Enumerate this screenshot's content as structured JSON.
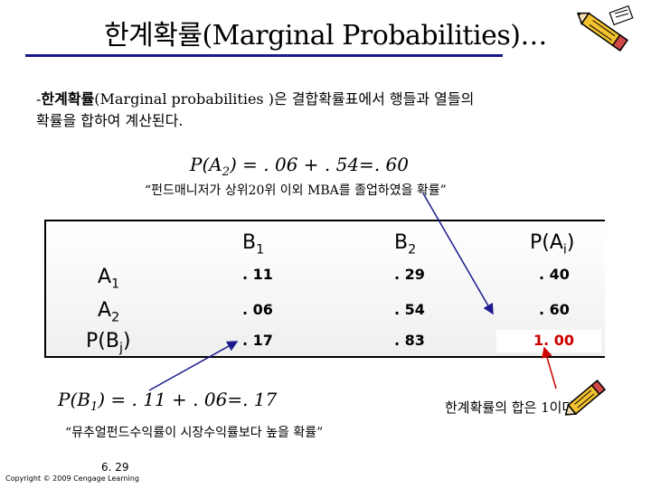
{
  "title": "한계확률(Marginal Probabilities)…",
  "intro": {
    "prefix": "-",
    "term": "한계확률",
    "text_1": "(Marginal probabilities )은 결합확률표에서 행들과 열들의",
    "text_2": "확률을 합하여 계산된다."
  },
  "formula_top": {
    "lhs": "P(A",
    "sub": "2",
    "rhs": ") = . 06 + . 54=. 60"
  },
  "quote_top": "“펀드매니저가 상위20위 이외 MBA를 졸업하였을 확률”",
  "table": {
    "headers": [
      {
        "main": "B",
        "sub": "1",
        "tail": ""
      },
      {
        "main": "B",
        "sub": "2",
        "tail": ""
      },
      {
        "main": "P(A",
        "sub": "i",
        "tail": ")"
      }
    ],
    "rows": [
      {
        "label": {
          "main": "A",
          "sub": "1",
          "tail": ""
        },
        "values": [
          ". 11",
          ". 29",
          ". 40"
        ]
      },
      {
        "label": {
          "main": "A",
          "sub": "2",
          "tail": ""
        },
        "values": [
          ". 06",
          ". 54",
          ". 60"
        ]
      },
      {
        "label": {
          "main": "P(B",
          "sub": "j",
          "tail": ")"
        },
        "values": [
          ". 17",
          ". 83",
          "1. 00"
        ]
      }
    ]
  },
  "formula_bottom": {
    "lhs": "P(B",
    "sub": "1",
    "rhs": ") = . 11 + . 06=. 17"
  },
  "quote_bottom": "“뮤추얼펀드수익률이 시장수익률보다 높을 확률”",
  "note_right": "한계확률의 합은 1이다.",
  "slide_number": "6. 29",
  "copyright": "Copyright © 2009 Cengage Learning",
  "colors": {
    "rule": "#1a1a8c",
    "arrow_blue": "#1a1a8c",
    "arrow_red": "#cc0000",
    "total_value": "#cc0000",
    "pencil_body": "#f2c230"
  },
  "icons": [
    "pencil-icon",
    "pencil-icon"
  ]
}
